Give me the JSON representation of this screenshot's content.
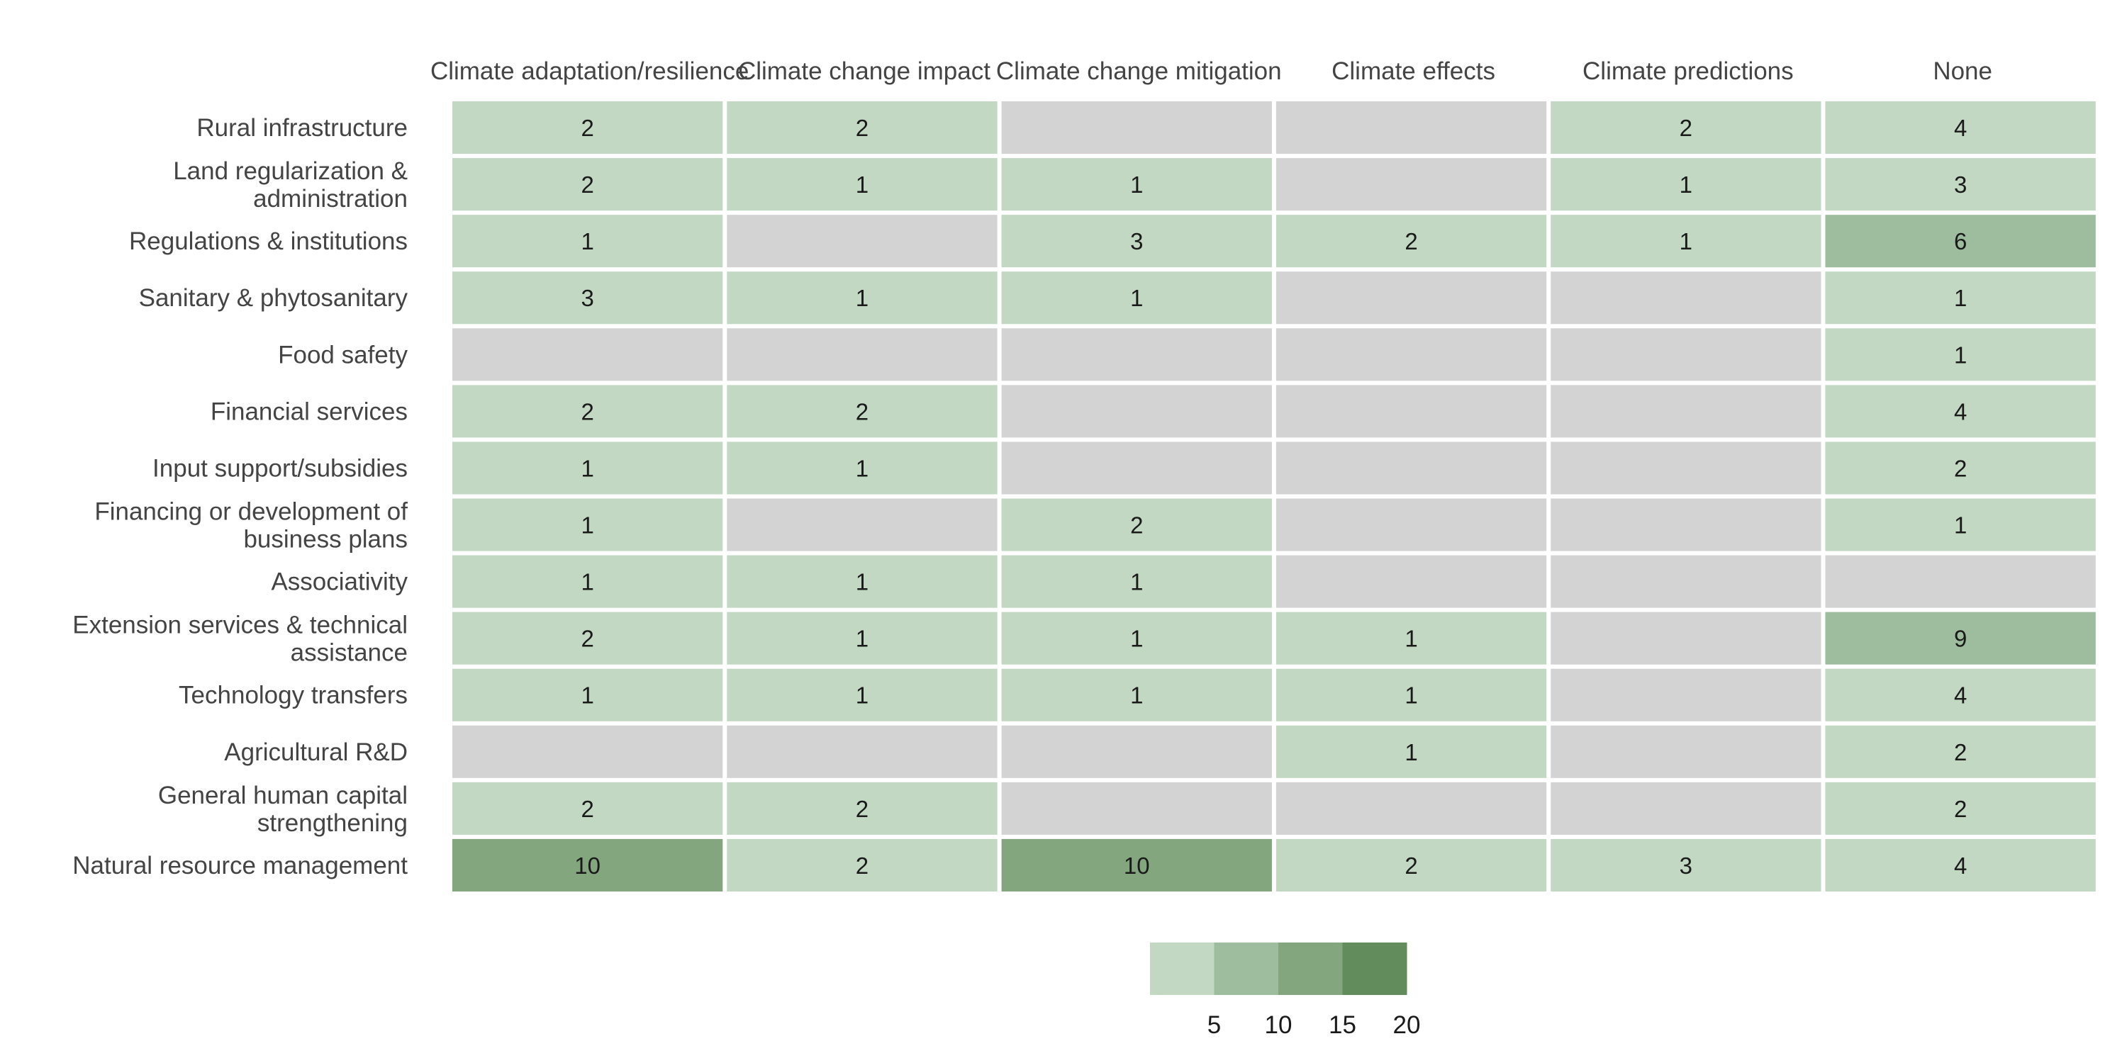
{
  "chart_data": {
    "type": "heatmap",
    "title": "",
    "xlabel": "",
    "ylabel": "",
    "columns": [
      "Climate adaptation/resilience",
      "Climate change impact",
      "Climate change mitigation",
      "Climate effects",
      "Climate predictions",
      "None"
    ],
    "rows": [
      [
        "Rural infrastructure"
      ],
      [
        "Land regularization &",
        "administration"
      ],
      [
        "Regulations & institutions"
      ],
      [
        "Sanitary & phytosanitary"
      ],
      [
        "Food safety"
      ],
      [
        "Financial services"
      ],
      [
        "Input support/subsidies"
      ],
      [
        "Financing or development of",
        "business plans"
      ],
      [
        "Associativity"
      ],
      [
        "Extension services & technical",
        "assistance"
      ],
      [
        "Technology transfers"
      ],
      [
        "Agricultural R&D"
      ],
      [
        "General human capital",
        "strengthening"
      ],
      [
        "Natural resource management"
      ]
    ],
    "values": [
      [
        2,
        2,
        null,
        null,
        2,
        4
      ],
      [
        2,
        1,
        1,
        null,
        1,
        3
      ],
      [
        1,
        null,
        3,
        2,
        1,
        6
      ],
      [
        3,
        1,
        1,
        null,
        null,
        1
      ],
      [
        null,
        null,
        null,
        null,
        null,
        1
      ],
      [
        2,
        2,
        null,
        null,
        null,
        4
      ],
      [
        1,
        1,
        null,
        null,
        null,
        2
      ],
      [
        1,
        null,
        2,
        null,
        null,
        1
      ],
      [
        1,
        1,
        1,
        null,
        null,
        null
      ],
      [
        2,
        1,
        1,
        1,
        null,
        9
      ],
      [
        1,
        1,
        1,
        1,
        null,
        4
      ],
      [
        null,
        null,
        null,
        1,
        null,
        2
      ],
      [
        2,
        2,
        null,
        null,
        null,
        2
      ],
      [
        10,
        2,
        10,
        2,
        3,
        4
      ]
    ],
    "empty_color": "#d3d3d3",
    "bin_colors": [
      "#c2d8c3",
      "#9ebd9e",
      "#83a67f",
      "#628c5c"
    ],
    "legend": {
      "placement": "bottom",
      "ticks": [
        "5",
        "10",
        "15",
        "20"
      ]
    }
  }
}
